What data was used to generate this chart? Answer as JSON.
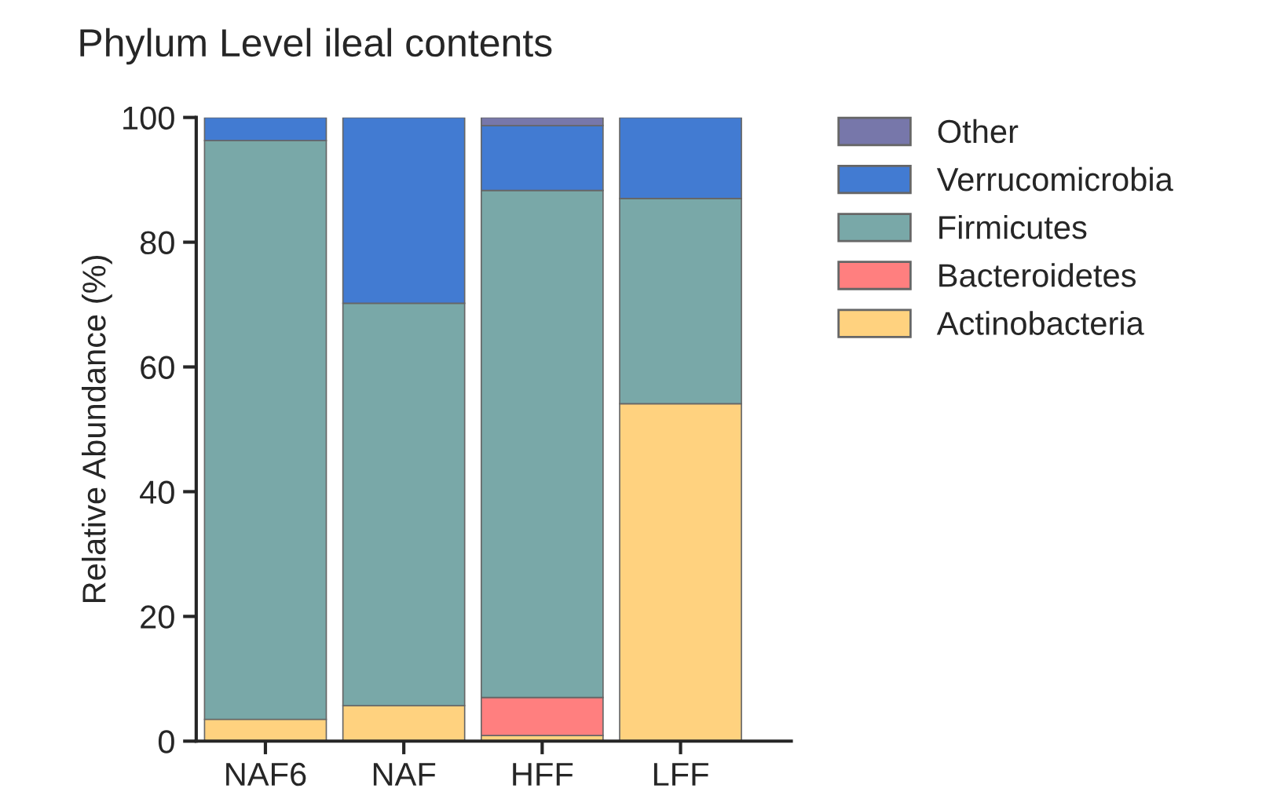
{
  "chart_data": {
    "type": "bar",
    "title": "Phylum Level ileal contents",
    "ylabel": "Relative Abundance (%)",
    "categories": [
      "NAF6",
      "NAF",
      "HFF",
      "LFF"
    ],
    "stacked": true,
    "series": [
      {
        "name": "Actinobacteria",
        "color": "#ffd27f",
        "values": [
          3.5,
          5.7,
          0.9,
          54.1
        ]
      },
      {
        "name": "Bacteroidetes",
        "color": "#ff7f7f",
        "values": [
          null,
          null,
          6.1,
          null
        ]
      },
      {
        "name": "Firmicutes",
        "color": "#79a8a8",
        "values": [
          92.8,
          64.5,
          81.3,
          32.9
        ]
      },
      {
        "name": "Verrucomicrobia",
        "color": "#427bd2",
        "values": [
          3.7,
          29.8,
          10.4,
          13.0
        ]
      },
      {
        "name": "Other",
        "color": "#7777aa",
        "values": [
          null,
          null,
          1.3,
          null
        ]
      }
    ],
    "ylim": [
      0,
      100
    ],
    "yticks": [
      0,
      20,
      40,
      60,
      80,
      100
    ],
    "grid": false,
    "legend": "right"
  }
}
